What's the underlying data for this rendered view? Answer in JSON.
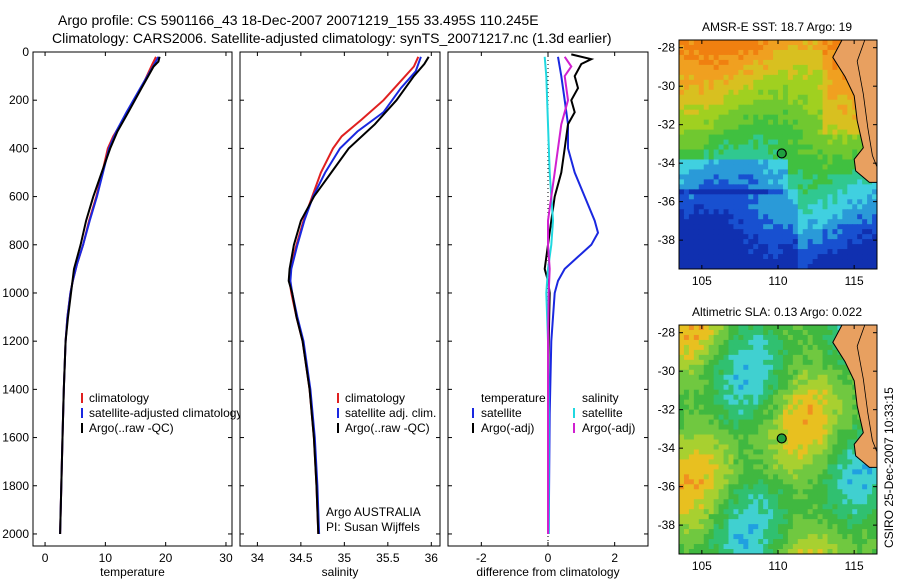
{
  "header": {
    "line1": "Argo profile: CS 5901166_43 18-Dec-2007 20071219_155 33.495S 110.245E",
    "line2": "Climatology: CARS2006. Satellite-adjusted climatology: synTS_20071217.nc (1.3d earlier)"
  },
  "side_label": "CSIRO 25-Dec-2007 10:33:15",
  "colors": {
    "climatology": "#e02020",
    "satellite": "#1a28e0",
    "argo": "#000000",
    "sal_satellite": "#20d8e0",
    "sal_argo": "#d020d0"
  },
  "chart_data": [
    {
      "type": "line",
      "xlabel": "temperature",
      "ylim": [
        2050,
        0
      ],
      "xlim": [
        -2,
        31
      ],
      "xticks": [
        "0",
        "10",
        "20",
        "30"
      ],
      "yticks": [
        "0",
        "200",
        "400",
        "600",
        "800",
        "1000",
        "1200",
        "1400",
        "1600",
        "1800",
        "2000"
      ],
      "legend": [
        "climatology",
        "satellite-adjusted climatology",
        "Argo(..raw -QC)"
      ],
      "series": [
        {
          "name": "climatology",
          "color": "#e02020",
          "points": [
            [
              18.4,
              20
            ],
            [
              17.8,
              50
            ],
            [
              16.5,
              120
            ],
            [
              14.8,
              200
            ],
            [
              13.0,
              280
            ],
            [
              11.3,
              350
            ],
            [
              10.4,
              400
            ],
            [
              9.5,
              500
            ],
            [
              8.5,
              600
            ],
            [
              7.3,
              700
            ],
            [
              6.3,
              800
            ],
            [
              5.3,
              880
            ],
            [
              4.6,
              950
            ],
            [
              4.2,
              1000
            ],
            [
              3.7,
              1100
            ],
            [
              3.4,
              1200
            ],
            [
              3.1,
              1400
            ],
            [
              2.9,
              1600
            ],
            [
              2.7,
              1800
            ],
            [
              2.5,
              2000
            ]
          ]
        },
        {
          "name": "satellite-adjusted climatology",
          "color": "#1a28e0",
          "points": [
            [
              18.8,
              20
            ],
            [
              17.9,
              60
            ],
            [
              15.8,
              150
            ],
            [
              13.5,
              250
            ],
            [
              11.8,
              330
            ],
            [
              10.6,
              400
            ],
            [
              9.6,
              500
            ],
            [
              8.6,
              600
            ],
            [
              7.4,
              700
            ],
            [
              6.3,
              800
            ],
            [
              5.3,
              880
            ],
            [
              4.6,
              950
            ],
            [
              4.2,
              1000
            ],
            [
              3.7,
              1100
            ],
            [
              3.4,
              1200
            ],
            [
              3.1,
              1400
            ],
            [
              2.9,
              1600
            ],
            [
              2.7,
              1800
            ],
            [
              2.5,
              2000
            ]
          ]
        },
        {
          "name": "Argo(..raw -QC)",
          "color": "#000000",
          "points": [
            [
              19.0,
              20
            ],
            [
              18.8,
              40
            ],
            [
              18.0,
              60
            ],
            [
              16.0,
              150
            ],
            [
              13.8,
              250
            ],
            [
              12.0,
              330
            ],
            [
              10.8,
              400
            ],
            [
              9.4,
              500
            ],
            [
              8.0,
              600
            ],
            [
              6.8,
              700
            ],
            [
              5.9,
              800
            ],
            [
              4.8,
              900
            ],
            [
              4.3,
              1000
            ],
            [
              3.8,
              1100
            ],
            [
              3.4,
              1200
            ],
            [
              3.1,
              1400
            ],
            [
              2.9,
              1600
            ],
            [
              2.7,
              1800
            ],
            [
              2.5,
              2000
            ]
          ]
        }
      ]
    },
    {
      "type": "line",
      "xlabel": "salinity",
      "ylim": [
        2050,
        0
      ],
      "xlim": [
        33.8,
        36.1
      ],
      "xticks": [
        "34",
        "34.5",
        "35",
        "35.5",
        "36"
      ],
      "legend": [
        "climatology",
        "satellite adj. clim.",
        "Argo(..raw -QC)"
      ],
      "annotation": [
        "Argo AUSTRALIA",
        "PI: Susan Wijffels"
      ],
      "series": [
        {
          "name": "climatology",
          "color": "#e02020",
          "points": [
            [
              35.85,
              20
            ],
            [
              35.8,
              60
            ],
            [
              35.65,
              120
            ],
            [
              35.45,
              200
            ],
            [
              35.2,
              280
            ],
            [
              34.97,
              350
            ],
            [
              34.87,
              400
            ],
            [
              34.73,
              500
            ],
            [
              34.63,
              600
            ],
            [
              34.53,
              700
            ],
            [
              34.45,
              800
            ],
            [
              34.38,
              900
            ],
            [
              34.37,
              950
            ],
            [
              34.39,
              1000
            ],
            [
              34.45,
              1100
            ],
            [
              34.52,
              1200
            ],
            [
              34.6,
              1400
            ],
            [
              34.65,
              1600
            ],
            [
              34.68,
              1800
            ],
            [
              34.7,
              2000
            ]
          ]
        },
        {
          "name": "satellite adj. clim.",
          "color": "#1a28e0",
          "points": [
            [
              35.88,
              20
            ],
            [
              35.82,
              80
            ],
            [
              35.65,
              150
            ],
            [
              35.45,
              250
            ],
            [
              35.15,
              330
            ],
            [
              34.95,
              400
            ],
            [
              34.78,
              500
            ],
            [
              34.64,
              600
            ],
            [
              34.54,
              700
            ],
            [
              34.46,
              800
            ],
            [
              34.39,
              900
            ],
            [
              34.38,
              950
            ],
            [
              34.4,
              1000
            ],
            [
              34.46,
              1100
            ],
            [
              34.53,
              1200
            ],
            [
              34.61,
              1400
            ],
            [
              34.66,
              1600
            ],
            [
              34.69,
              1800
            ],
            [
              34.71,
              2000
            ]
          ]
        },
        {
          "name": "Argo(..raw -QC)",
          "color": "#000000",
          "points": [
            [
              35.97,
              20
            ],
            [
              35.92,
              50
            ],
            [
              35.8,
              100
            ],
            [
              35.6,
              200
            ],
            [
              35.35,
              300
            ],
            [
              35.05,
              400
            ],
            [
              34.85,
              500
            ],
            [
              34.65,
              600
            ],
            [
              34.5,
              700
            ],
            [
              34.42,
              800
            ],
            [
              34.37,
              900
            ],
            [
              34.36,
              950
            ],
            [
              34.4,
              1000
            ],
            [
              34.45,
              1100
            ],
            [
              34.52,
              1200
            ],
            [
              34.6,
              1400
            ],
            [
              34.65,
              1600
            ],
            [
              34.68,
              1800
            ],
            [
              34.7,
              2000
            ]
          ]
        }
      ]
    },
    {
      "type": "line",
      "xlabel": "difference from climatology",
      "ylim": [
        2050,
        0
      ],
      "xlim": [
        -3,
        3
      ],
      "xticks": [
        "-2",
        "0",
        "2"
      ],
      "legend_groups": [
        {
          "title": "temperature",
          "entries": [
            "satellite",
            "Argo(-adj)"
          ]
        },
        {
          "title": "salinity",
          "entries": [
            "satellite",
            "Argo(-adj)"
          ]
        }
      ],
      "series": [
        {
          "name": "temperature satellite",
          "color": "#1a28e0",
          "points": [
            [
              0.3,
              20
            ],
            [
              0.4,
              100
            ],
            [
              0.5,
              200
            ],
            [
              0.6,
              300
            ],
            [
              0.6,
              400
            ],
            [
              0.8,
              500
            ],
            [
              1.1,
              600
            ],
            [
              1.4,
              700
            ],
            [
              1.5,
              750
            ],
            [
              1.3,
              800
            ],
            [
              0.9,
              850
            ],
            [
              0.5,
              900
            ],
            [
              0.3,
              950
            ],
            [
              0.2,
              1000
            ],
            [
              0.1,
              1200
            ],
            [
              0.05,
              1500
            ],
            [
              0.02,
              2000
            ]
          ]
        },
        {
          "name": "temperature Argo(-adj)",
          "color": "#000000",
          "points": [
            [
              0.7,
              10
            ],
            [
              1.3,
              30
            ],
            [
              1.0,
              50
            ],
            [
              0.8,
              100
            ],
            [
              0.9,
              150
            ],
            [
              0.7,
              200
            ],
            [
              0.8,
              250
            ],
            [
              0.6,
              300
            ],
            [
              0.5,
              400
            ],
            [
              0.4,
              500
            ],
            [
              0.2,
              600
            ],
            [
              0.1,
              700
            ],
            [
              0.0,
              800
            ],
            [
              -0.1,
              900
            ],
            [
              0.0,
              950
            ],
            [
              0.05,
              1000
            ],
            [
              0.02,
              1200
            ],
            [
              0.0,
              1500
            ],
            [
              0.0,
              2000
            ]
          ]
        },
        {
          "name": "salinity satellite",
          "color": "#20d8e0",
          "points": [
            [
              -0.1,
              20
            ],
            [
              -0.05,
              100
            ],
            [
              0.0,
              300
            ],
            [
              0.05,
              500
            ],
            [
              0.1,
              600
            ],
            [
              0.15,
              700
            ],
            [
              0.1,
              800
            ],
            [
              0.0,
              900
            ],
            [
              -0.05,
              1000
            ],
            [
              0.0,
              1200
            ],
            [
              0.02,
              1500
            ],
            [
              0.02,
              2000
            ]
          ]
        },
        {
          "name": "salinity Argo(-adj)",
          "color": "#d020d0",
          "points": [
            [
              0.5,
              20
            ],
            [
              0.7,
              60
            ],
            [
              0.5,
              100
            ],
            [
              0.6,
              200
            ],
            [
              0.4,
              300
            ],
            [
              0.3,
              400
            ],
            [
              0.2,
              500
            ],
            [
              0.1,
              600
            ],
            [
              0.0,
              700
            ],
            [
              0.0,
              800
            ],
            [
              0.05,
              900
            ],
            [
              0.02,
              1000
            ],
            [
              0.0,
              1200
            ],
            [
              0.0,
              2000
            ]
          ]
        }
      ]
    },
    {
      "type": "heatmap",
      "title": "AMSR-E SST: 18.7 Argo: 19",
      "xticks": [
        "105",
        "110",
        "115"
      ],
      "yticks": [
        "-28",
        "-30",
        "-32",
        "-34",
        "-36",
        "-38"
      ],
      "xlim": [
        103.5,
        116.5
      ],
      "ylim": [
        -27.6,
        -39.5
      ],
      "marker": {
        "lon": 110.245,
        "lat": -33.495
      }
    },
    {
      "type": "heatmap",
      "title": "Altimetric SLA: 0.13 Argo: 0.022",
      "xticks": [
        "105",
        "110",
        "115"
      ],
      "yticks": [
        "-28",
        "-30",
        "-32",
        "-34",
        "-36",
        "-38"
      ],
      "xlim": [
        103.5,
        116.5
      ],
      "ylim": [
        -27.6,
        -39.5
      ],
      "marker": {
        "lon": 110.245,
        "lat": -33.495
      }
    }
  ]
}
